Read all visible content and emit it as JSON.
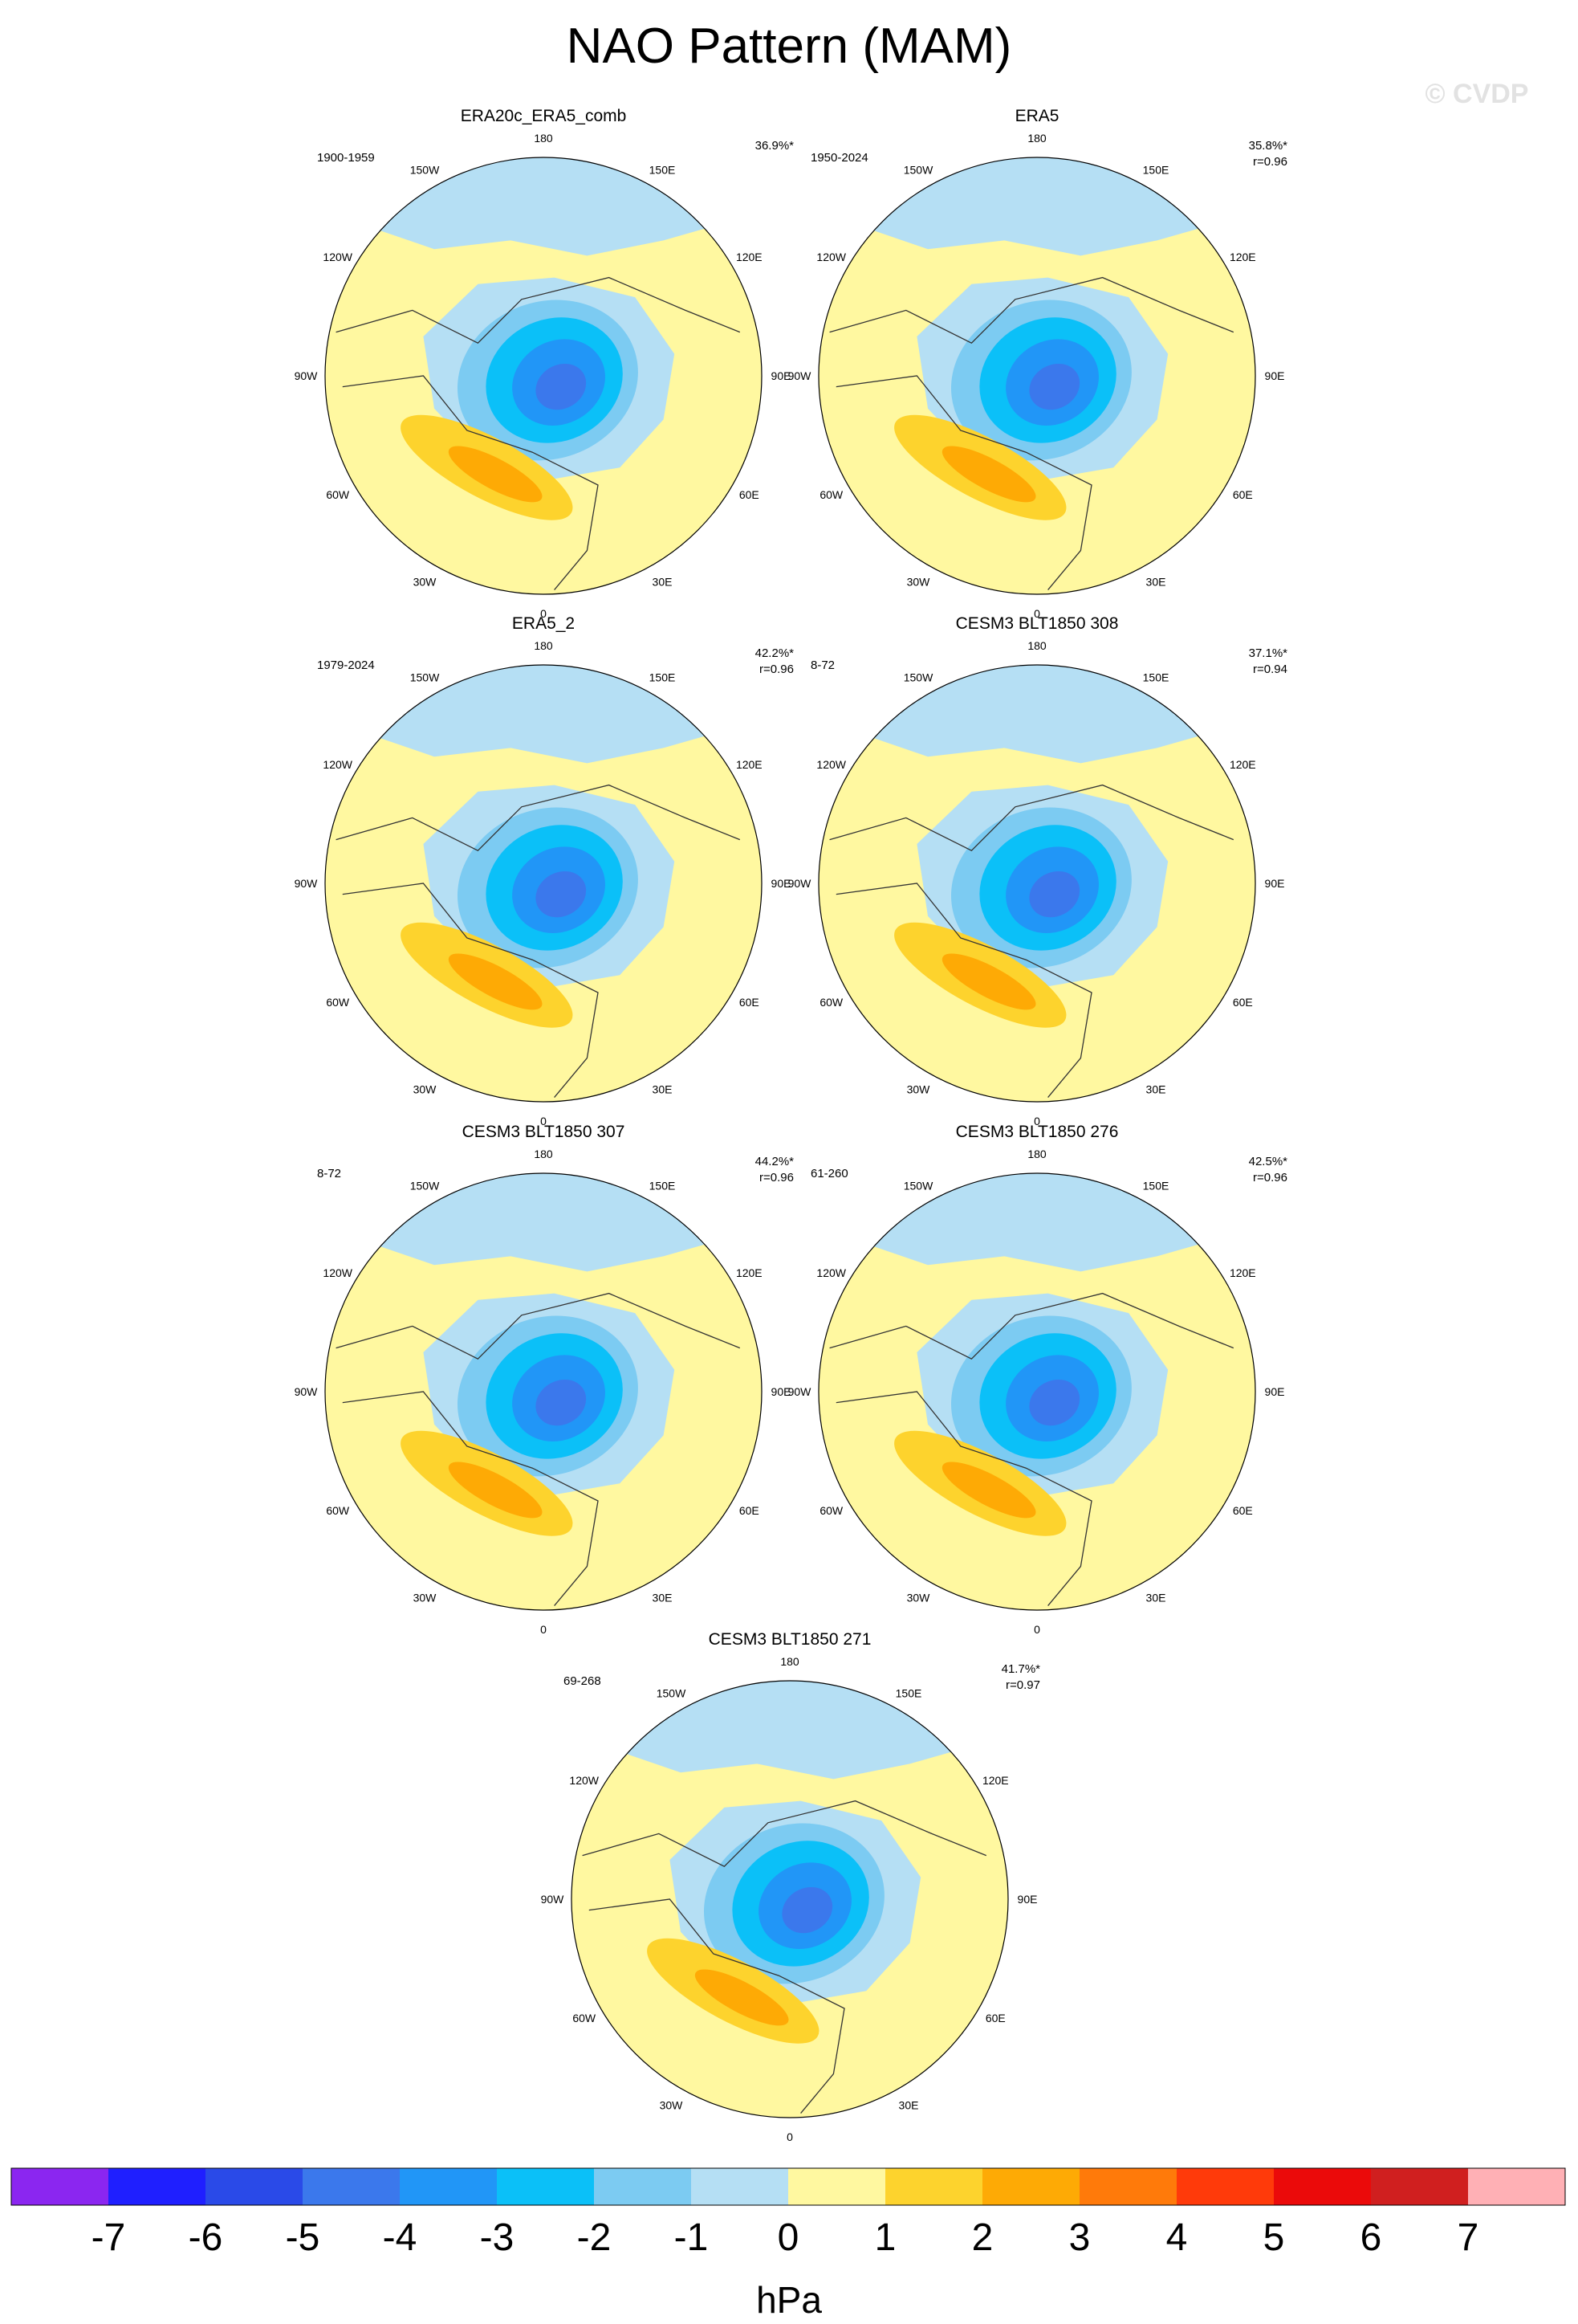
{
  "title": "NAO Pattern (MAM)",
  "watermark": "© CVDP",
  "units": "hPa",
  "projection": "north-polar-stereographic",
  "longitude_labels": [
    "180",
    "150E",
    "120E",
    "90E",
    "60E",
    "30E",
    "0",
    "30W",
    "60W",
    "90W",
    "120W",
    "150W"
  ],
  "colorbar": {
    "ticks": [
      "-7",
      "-6",
      "-5",
      "-4",
      "-3",
      "-2",
      "-1",
      "0",
      "1",
      "2",
      "3",
      "4",
      "5",
      "6",
      "7"
    ],
    "colors": [
      "#8b26f0",
      "#1f1fff",
      "#2a4ae8",
      "#3b78ec",
      "#2196f7",
      "#0bc0f8",
      "#7ccbf2",
      "#b5dff4",
      "#fff8a0",
      "#fdd32d",
      "#feaa05",
      "#ff7a0a",
      "#ff3a0a",
      "#eb0a0a",
      "#d01f1f",
      "#ffb0b5"
    ]
  },
  "panels": [
    {
      "title": "ERA20c_ERA5_comb",
      "years": "1900-1959",
      "pct": "36.9%*",
      "r": ""
    },
    {
      "title": "ERA5",
      "years": "1950-2024",
      "pct": "35.8%*",
      "r": "r=0.96"
    },
    {
      "title": "ERA5_2",
      "years": "1979-2024",
      "pct": "42.2%*",
      "r": "r=0.96"
    },
    {
      "title": "CESM3 BLT1850 308",
      "years": "8-72",
      "pct": "37.1%*",
      "r": "r=0.94"
    },
    {
      "title": "CESM3 BLT1850 307",
      "years": "8-72",
      "pct": "44.2%*",
      "r": "r=0.96"
    },
    {
      "title": "CESM3 BLT1850 276",
      "years": "61-260",
      "pct": "42.5%*",
      "r": "r=0.96"
    },
    {
      "title": "CESM3 BLT1850 271",
      "years": "69-268",
      "pct": "41.7%*",
      "r": "r=0.97"
    }
  ]
}
